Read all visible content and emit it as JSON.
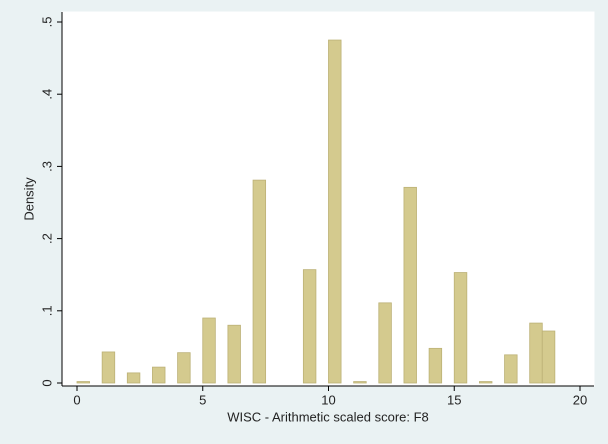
{
  "chart_data": {
    "type": "histogram",
    "xlabel": "WISC - Arithmetic scaled score: F8",
    "ylabel": "Density",
    "bins": [
      0,
      0.5,
      1,
      1.5,
      2,
      2.5,
      3,
      3.5,
      4,
      4.5,
      5,
      5.5,
      6,
      6.5,
      7,
      7.5,
      8,
      8.5,
      9,
      9.5,
      10,
      10.5,
      11,
      11.5,
      12,
      12.5,
      13,
      13.5,
      14,
      14.5,
      15,
      15.5,
      16,
      16.5,
      17,
      17.5,
      18,
      18.5,
      19
    ],
    "values": [
      0.002,
      0,
      0.043,
      0,
      0.014,
      0,
      0.022,
      0,
      0.042,
      0,
      0.09,
      0,
      0.08,
      0,
      0.281,
      0,
      0,
      0,
      0.157,
      0,
      0.475,
      0,
      0.002,
      0,
      0.111,
      0,
      0.271,
      0,
      0.048,
      0,
      0.153,
      0,
      0.002,
      0,
      0.039,
      0,
      0.083,
      0.072
    ],
    "color": "#d4ca8e",
    "xlim": [
      0,
      20
    ],
    "xticks": [
      0,
      5,
      10,
      15,
      20
    ],
    "ylim": [
      0,
      0.5
    ],
    "yticks": [
      0,
      {
        "value": 0.1,
        "label": ".1"
      },
      {
        "value": 0.2,
        "label": ".2"
      },
      {
        "value": 0.3,
        "label": ".3"
      },
      {
        "value": 0.4,
        "label": ".4"
      },
      {
        "value": 0.5,
        "label": ".5"
      }
    ],
    "grid": false
  }
}
